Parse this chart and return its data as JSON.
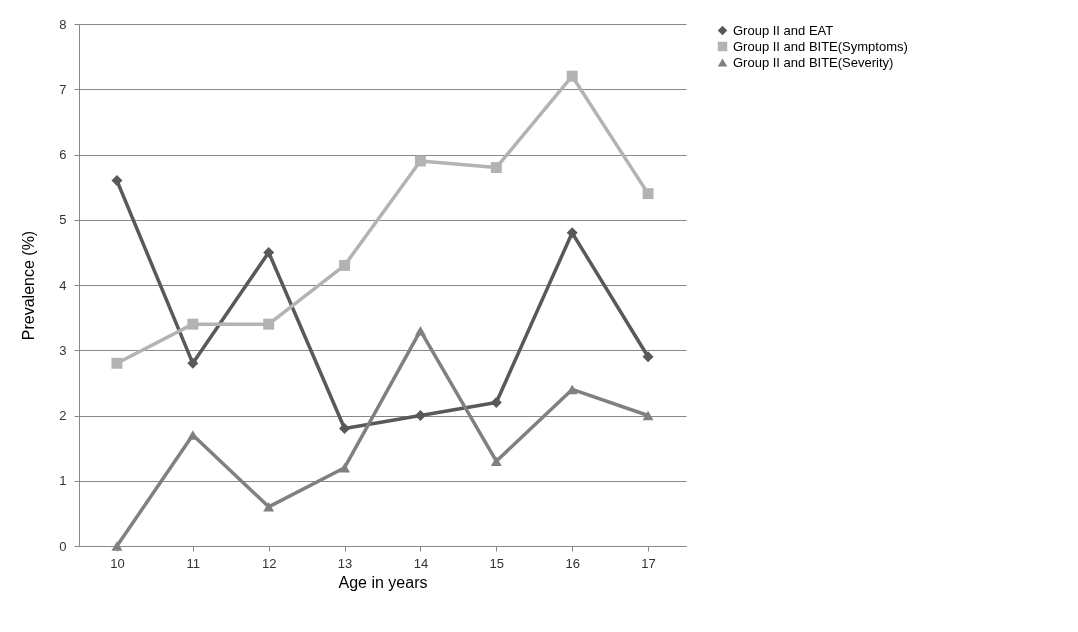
{
  "chart_data": {
    "type": "line",
    "xlabel": "Age in years",
    "ylabel": "Prevalence (%)",
    "categories": [
      "10",
      "11",
      "12",
      "13",
      "14",
      "15",
      "16",
      "17"
    ],
    "series": [
      {
        "name": "Group II and EAT",
        "color": "#595959",
        "marker": "diamond",
        "values": [
          5.6,
          2.8,
          4.5,
          1.8,
          2.0,
          2.2,
          4.8,
          2.9
        ]
      },
      {
        "name": "Group II and BITE(Symptoms)",
        "color": "#b3b3b3",
        "marker": "square",
        "values": [
          2.8,
          3.4,
          3.4,
          4.3,
          5.9,
          5.8,
          7.2,
          5.4
        ]
      },
      {
        "name": "Group II and BITE(Severity)",
        "color": "#808080",
        "marker": "triangle",
        "values": [
          0,
          1.7,
          0.6,
          1.2,
          3.3,
          1.3,
          2.4,
          2.0
        ]
      }
    ],
    "ylim": [
      0,
      8
    ],
    "yticks": [
      0,
      1,
      2,
      3,
      4,
      5,
      6,
      7,
      8
    ],
    "grid": "y",
    "legend": "right"
  }
}
